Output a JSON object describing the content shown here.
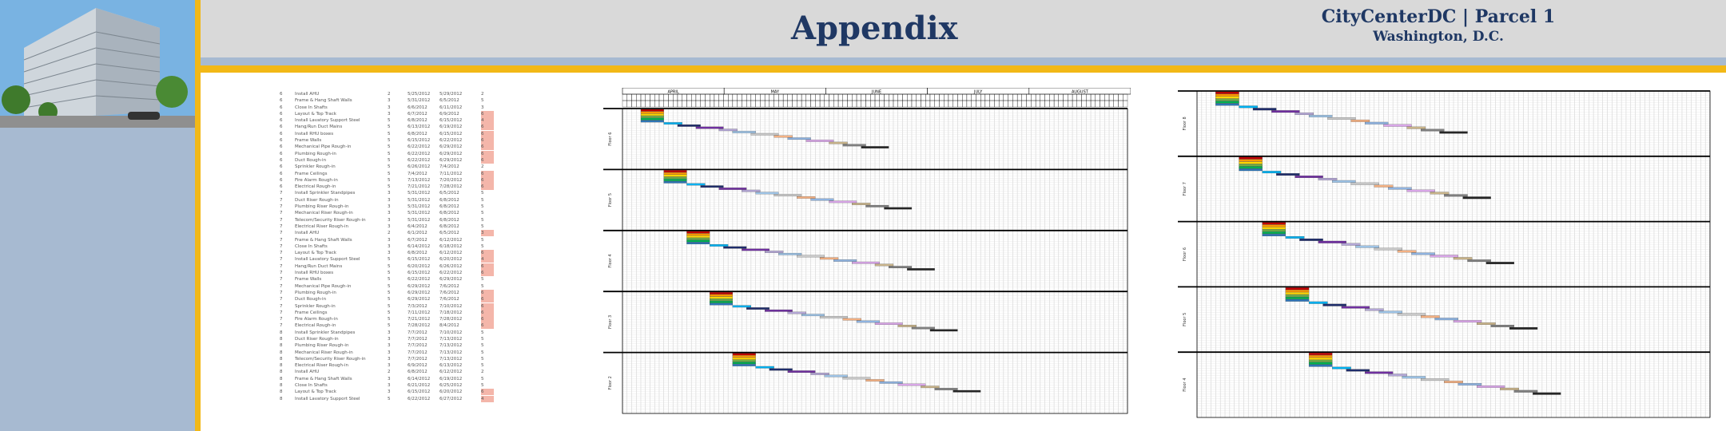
{
  "header": {
    "title": "Appendix",
    "project": "CityCenterDC | Parcel 1",
    "location": "Washington, D.C."
  },
  "photo": {
    "alt": "building-photo"
  },
  "schedule_table": [
    [
      "6",
      "Install AHU",
      "2",
      "5/25/2012",
      "5/29/2012",
      "2",
      false
    ],
    [
      "6",
      "Frame & Hang Shaft Walls",
      "3",
      "5/31/2012",
      "6/5/2012",
      "5",
      false
    ],
    [
      "6",
      "Close In Shafts",
      "3",
      "6/6/2012",
      "6/11/2012",
      "3",
      false
    ],
    [
      "6",
      "Layout & Top Track",
      "3",
      "6/7/2012",
      "6/9/2012",
      "6",
      true
    ],
    [
      "6",
      "Install Lavatory Support Steel",
      "5",
      "6/8/2012",
      "6/15/2012",
      "4",
      true
    ],
    [
      "6",
      "Hang/Run Duct Mains",
      "5",
      "6/13/2012",
      "6/19/2012",
      "6",
      true
    ],
    [
      "6",
      "Install RHU boxes",
      "5",
      "6/8/2012",
      "6/15/2012",
      "6",
      true
    ],
    [
      "6",
      "Frame Walls",
      "5",
      "6/15/2012",
      "6/22/2012",
      "6",
      true
    ],
    [
      "6",
      "Mechanical Pipe Rough-in",
      "5",
      "6/22/2012",
      "6/29/2012",
      "6",
      true
    ],
    [
      "6",
      "Plumbing Rough-in",
      "5",
      "6/22/2012",
      "6/29/2012",
      "6",
      true
    ],
    [
      "6",
      "Duct Rough-in",
      "5",
      "6/22/2012",
      "6/29/2012",
      "6",
      true
    ],
    [
      "6",
      "Sprinkler Rough-in",
      "5",
      "6/26/2012",
      "7/4/2012",
      "2",
      false
    ],
    [
      "6",
      "Frame Ceilings",
      "5",
      "7/4/2012",
      "7/11/2012",
      "6",
      true
    ],
    [
      "6",
      "Fire Alarm Rough-in",
      "5",
      "7/13/2012",
      "7/20/2012",
      "6",
      true
    ],
    [
      "6",
      "Electrical Rough-in",
      "5",
      "7/21/2012",
      "7/28/2012",
      "6",
      true
    ],
    [
      "7",
      "Install Sprinkler Standpipes",
      "3",
      "5/31/2012",
      "6/5/2012",
      "5",
      false
    ],
    [
      "7",
      "Duct Riser Rough-in",
      "3",
      "5/31/2012",
      "6/8/2012",
      "5",
      false
    ],
    [
      "7",
      "Plumbing Riser Rough-in",
      "3",
      "5/31/2012",
      "6/8/2012",
      "5",
      false
    ],
    [
      "7",
      "Mechanical Riser Rough-in",
      "3",
      "5/31/2012",
      "6/8/2012",
      "5",
      false
    ],
    [
      "7",
      "Telecom/Security Riser Rough-in",
      "3",
      "5/31/2012",
      "6/8/2012",
      "5",
      false
    ],
    [
      "7",
      "Electrical Riser Rough-in",
      "3",
      "6/4/2012",
      "6/8/2012",
      "5",
      false
    ],
    [
      "7",
      "Install AHU",
      "2",
      "6/1/2012",
      "6/5/2012",
      "3",
      true
    ],
    [
      "7",
      "Frame & Hang Shaft Walls",
      "3",
      "6/7/2012",
      "6/12/2012",
      "5",
      false
    ],
    [
      "7",
      "Close In Shafts",
      "3",
      "6/14/2012",
      "6/18/2012",
      "5",
      false
    ],
    [
      "7",
      "Layout & Top Track",
      "3",
      "6/8/2012",
      "6/12/2012",
      "6",
      true
    ],
    [
      "7",
      "Install Lavatory Support Steel",
      "5",
      "6/15/2012",
      "6/20/2012",
      "4",
      true
    ],
    [
      "7",
      "Hang/Run Duct Mains",
      "5",
      "6/20/2012",
      "6/26/2012",
      "6",
      true
    ],
    [
      "7",
      "Install RHU boxes",
      "5",
      "6/15/2012",
      "6/22/2012",
      "6",
      true
    ],
    [
      "7",
      "Frame Walls",
      "5",
      "6/22/2012",
      "6/29/2012",
      "5",
      false
    ],
    [
      "7",
      "Mechanical Pipe Rough-in",
      "5",
      "6/29/2012",
      "7/6/2012",
      "5",
      false
    ],
    [
      "7",
      "Plumbing Rough-in",
      "5",
      "6/29/2012",
      "7/6/2012",
      "6",
      true
    ],
    [
      "7",
      "Duct Rough-in",
      "5",
      "6/29/2012",
      "7/6/2012",
      "6",
      true
    ],
    [
      "7",
      "Sprinkler Rough-in",
      "5",
      "7/3/2012",
      "7/10/2012",
      "6",
      true
    ],
    [
      "7",
      "Frame Ceilings",
      "5",
      "7/11/2012",
      "7/18/2012",
      "6",
      true
    ],
    [
      "7",
      "Fire Alarm Rough-in",
      "5",
      "7/21/2012",
      "7/28/2012",
      "6",
      true
    ],
    [
      "7",
      "Electrical Rough-in",
      "5",
      "7/28/2012",
      "8/4/2012",
      "6",
      true
    ],
    [
      "8",
      "Install Sprinkler Standpipes",
      "3",
      "7/7/2012",
      "7/10/2012",
      "5",
      false
    ],
    [
      "8",
      "Duct Riser Rough-in",
      "3",
      "7/7/2012",
      "7/13/2012",
      "5",
      false
    ],
    [
      "8",
      "Plumbing Riser Rough-in",
      "3",
      "7/7/2012",
      "7/13/2012",
      "5",
      false
    ],
    [
      "8",
      "Mechanical Riser Rough-in",
      "3",
      "7/7/2012",
      "7/13/2012",
      "5",
      false
    ],
    [
      "8",
      "Telecom/Security Riser Rough-in",
      "3",
      "7/7/2012",
      "7/13/2012",
      "5",
      false
    ],
    [
      "8",
      "Electrical Riser Rough-in",
      "3",
      "6/9/2012",
      "6/13/2012",
      "5",
      false
    ],
    [
      "8",
      "Install AHU",
      "2",
      "6/8/2012",
      "6/12/2012",
      "2",
      false
    ],
    [
      "8",
      "Frame & Hang Shaft Walls",
      "3",
      "6/14/2012",
      "6/19/2012",
      "5",
      false
    ],
    [
      "8",
      "Close In Shafts",
      "3",
      "6/21/2012",
      "6/25/2012",
      "5",
      false
    ],
    [
      "8",
      "Layout & Top Track",
      "3",
      "6/15/2012",
      "6/20/2012",
      "6",
      true
    ],
    [
      "8",
      "Install Lavatory Support Steel",
      "5",
      "6/22/2012",
      "6/27/2012",
      "4",
      true
    ]
  ],
  "gantt_left": {
    "floor_labels": [
      "Floor 6",
      "Floor 5",
      "Floor 4",
      "Floor 3",
      "Floor 2"
    ],
    "months": [
      "APRIL",
      "MAY",
      "JUNE",
      "JULY",
      "AUGUST"
    ]
  },
  "gantt_right": {
    "floor_labels": [
      "Floor 8",
      "Floor 7",
      "Floor 6",
      "Floor 5",
      "Floor 4"
    ]
  },
  "colors": {
    "navy": "#1f3864",
    "gold": "#f2b817",
    "steel": "#a7bad1",
    "header_gray": "#d9d9d9",
    "highlight": "#f4b6aa"
  }
}
